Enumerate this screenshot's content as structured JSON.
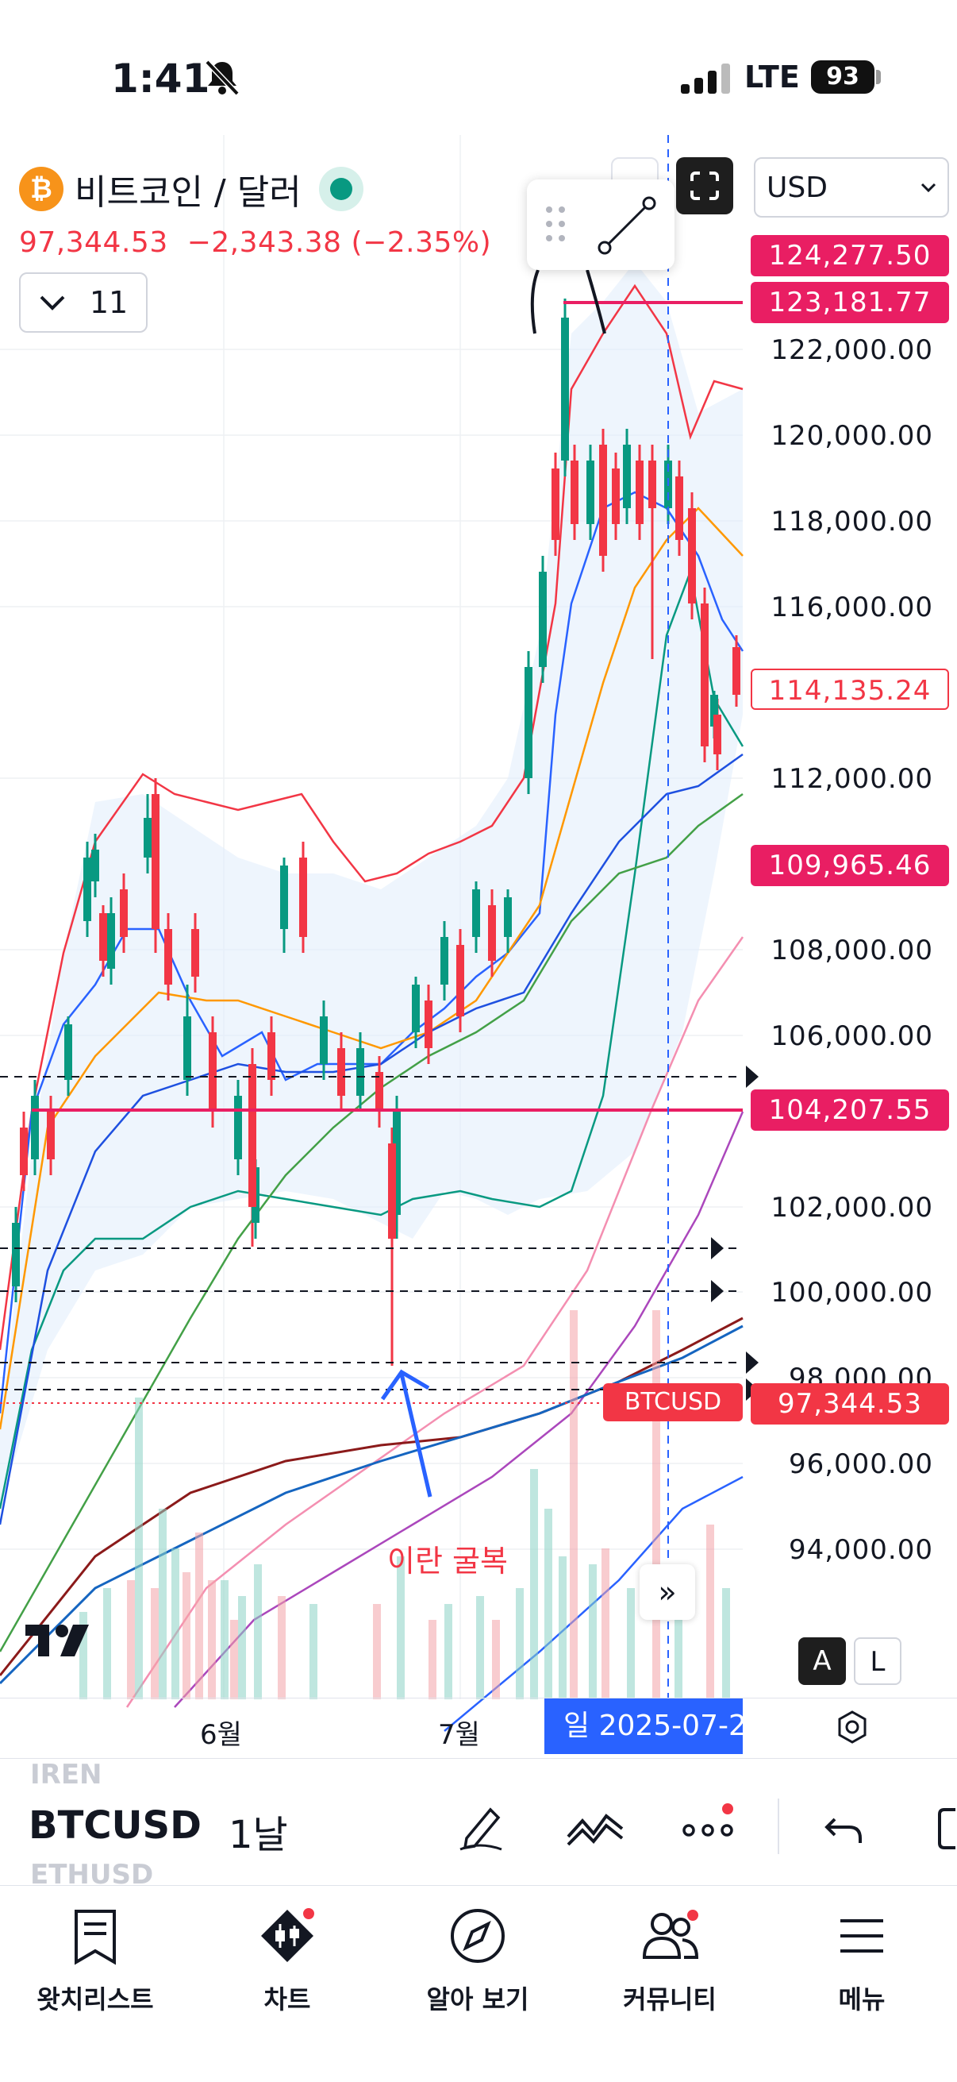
{
  "status": {
    "time": "1:41",
    "network": "LTE",
    "battery": "93"
  },
  "symbol": {
    "name": "비트코인 / 달러",
    "price": "97,344.53",
    "change": "−2,343.38 (−2.35%)",
    "interval_count": "11",
    "currency": "USD"
  },
  "price_axis": {
    "labels": [
      "122,000.00",
      "120,000.00",
      "118,000.00",
      "116,000.00",
      "112,000.00",
      "108,000.00",
      "106,000.00",
      "102,000.00",
      "100,000.00",
      "98,000.00",
      "96,000.00",
      "94,000.00"
    ],
    "badge_high": "124,277.50",
    "badge_line": "123,181.77",
    "badge_current_outline": "114,135.24",
    "badge_mid": "109,965.46",
    "badge_support": "104,207.55",
    "badge_last": "97,344.53",
    "last_tag": "BTCUSD"
  },
  "annotation": {
    "text": "이란 굴복"
  },
  "time_axis": {
    "month1": "6월",
    "month2": "7월",
    "crosshair_date": "일 2025-07-2"
  },
  "chart_data": {
    "type": "candlestick",
    "title": "비트코인 / 달러",
    "ylim": [
      92000,
      126000
    ],
    "x": [
      "6월",
      "7월"
    ],
    "horizontal_lines": [
      123181.77,
      104207.55,
      97344.53
    ],
    "markers": [
      124277.5,
      114135.24,
      109965.46
    ]
  },
  "toolbar": {
    "ticker": "BTCUSD",
    "interval": "1날",
    "ghost_above": "IREN",
    "ghost_below": "ETHUSD"
  },
  "nav": {
    "watchlist": "왓치리스트",
    "chart": "차트",
    "explore": "알아 보기",
    "community": "커뮤니티",
    "menu": "메뉴"
  },
  "colors": {
    "up": "#089981",
    "down": "#f23645",
    "accent": "#2962ff",
    "highlight": "#e91e63",
    "bitcoin": "#f7931a"
  }
}
